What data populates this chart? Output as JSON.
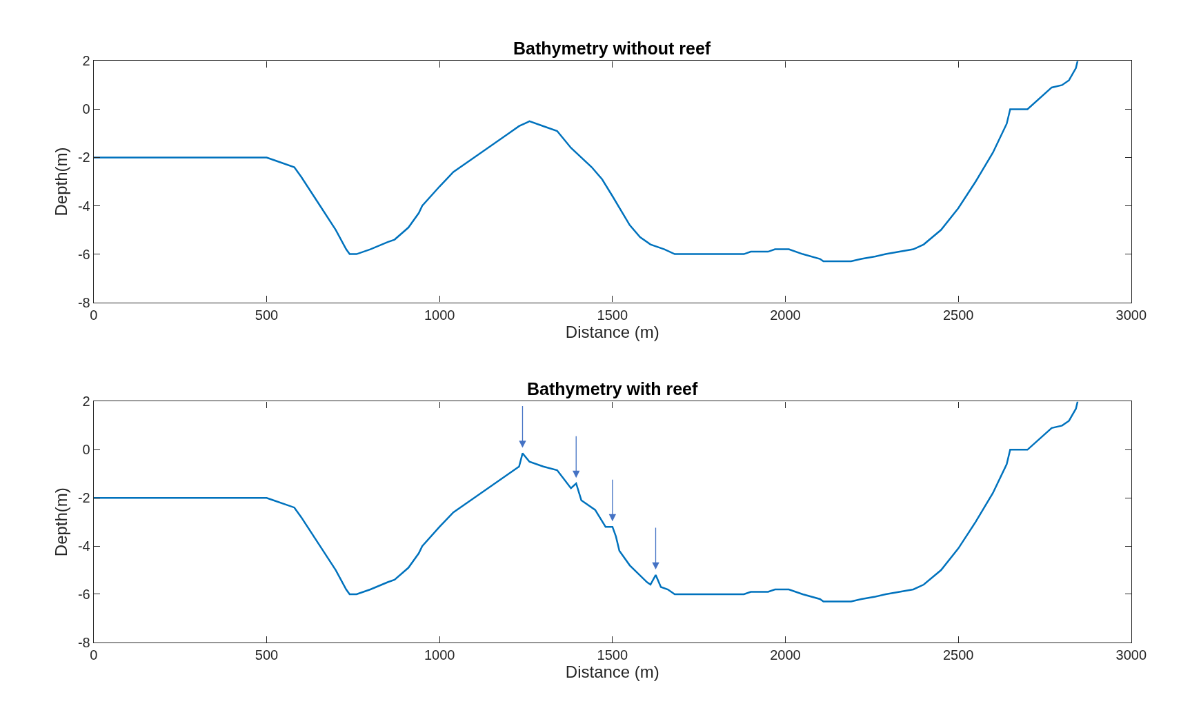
{
  "chart_data": [
    {
      "type": "line",
      "title": "Bathymetry without reef",
      "xlabel": "Distance (m)",
      "ylabel": "Depth(m)",
      "xlim": [
        0,
        3000
      ],
      "ylim": [
        -8,
        2
      ],
      "xticks": [
        0,
        500,
        1000,
        1500,
        2000,
        2500,
        3000
      ],
      "yticks": [
        -8,
        -6,
        -4,
        -2,
        0,
        2
      ],
      "series": [
        {
          "color": "#0072bd",
          "x": [
            0,
            500,
            520,
            580,
            600,
            650,
            700,
            730,
            740,
            760,
            800,
            850,
            870,
            910,
            940,
            950,
            1000,
            1040,
            1100,
            1150,
            1200,
            1230,
            1260,
            1300,
            1340,
            1380,
            1440,
            1470,
            1500,
            1550,
            1580,
            1610,
            1650,
            1680,
            1880,
            1900,
            1950,
            1970,
            2010,
            2050,
            2100,
            2110,
            2190,
            2220,
            2260,
            2290,
            2370,
            2400,
            2450,
            2500,
            2550,
            2600,
            2640,
            2650,
            2700,
            2770,
            2800,
            2820,
            2840,
            2845
          ],
          "values": [
            -2,
            -2,
            -2.1,
            -2.4,
            -2.8,
            -3.9,
            -5.0,
            -5.8,
            -6.0,
            -6.0,
            -5.8,
            -5.5,
            -5.4,
            -4.9,
            -4.3,
            -4.0,
            -3.2,
            -2.6,
            -2.0,
            -1.5,
            -1.0,
            -0.7,
            -0.5,
            -0.7,
            -0.9,
            -1.6,
            -2.4,
            -2.9,
            -3.6,
            -4.8,
            -5.3,
            -5.6,
            -5.8,
            -6.0,
            -6.0,
            -5.9,
            -5.9,
            -5.8,
            -5.8,
            -6.0,
            -6.2,
            -6.3,
            -6.3,
            -6.2,
            -6.1,
            -6.0,
            -5.8,
            -5.6,
            -5.0,
            -4.1,
            -3.0,
            -1.8,
            -0.6,
            0,
            0,
            0.9,
            1.0,
            1.2,
            1.7,
            2.0
          ]
        }
      ]
    },
    {
      "type": "line",
      "title": "Bathymetry with reef",
      "xlabel": "Distance (m)",
      "ylabel": "Depth(m)",
      "xlim": [
        0,
        3000
      ],
      "ylim": [
        -8,
        2
      ],
      "xticks": [
        0,
        500,
        1000,
        1500,
        2000,
        2500,
        3000
      ],
      "yticks": [
        -8,
        -6,
        -4,
        -2,
        0,
        2
      ],
      "series": [
        {
          "color": "#0072bd",
          "x": [
            0,
            500,
            520,
            580,
            600,
            650,
            700,
            730,
            740,
            760,
            800,
            850,
            870,
            910,
            940,
            950,
            1000,
            1040,
            1100,
            1150,
            1200,
            1230,
            1240,
            1260,
            1300,
            1340,
            1380,
            1395,
            1410,
            1450,
            1480,
            1500,
            1510,
            1520,
            1550,
            1600,
            1610,
            1625,
            1640,
            1660,
            1680,
            1880,
            1900,
            1950,
            1970,
            2010,
            2050,
            2100,
            2110,
            2190,
            2220,
            2260,
            2290,
            2370,
            2400,
            2450,
            2500,
            2550,
            2600,
            2640,
            2650,
            2700,
            2770,
            2800,
            2820,
            2840,
            2845
          ],
          "values": [
            -2,
            -2,
            -2.1,
            -2.4,
            -2.8,
            -3.9,
            -5.0,
            -5.8,
            -6.0,
            -6.0,
            -5.8,
            -5.5,
            -5.4,
            -4.9,
            -4.3,
            -4.0,
            -3.2,
            -2.6,
            -2.0,
            -1.5,
            -1.0,
            -0.7,
            -0.15,
            -0.5,
            -0.7,
            -0.85,
            -1.6,
            -1.4,
            -2.1,
            -2.5,
            -3.2,
            -3.2,
            -3.6,
            -4.2,
            -4.8,
            -5.5,
            -5.6,
            -5.2,
            -5.7,
            -5.8,
            -6.0,
            -6.0,
            -5.9,
            -5.9,
            -5.8,
            -5.8,
            -6.0,
            -6.2,
            -6.3,
            -6.3,
            -6.2,
            -6.1,
            -6.0,
            -5.8,
            -5.6,
            -5.0,
            -4.1,
            -3.0,
            -1.8,
            -0.6,
            0,
            0,
            0.9,
            1.0,
            1.2,
            1.7,
            2.0
          ]
        }
      ]
    }
  ]
}
